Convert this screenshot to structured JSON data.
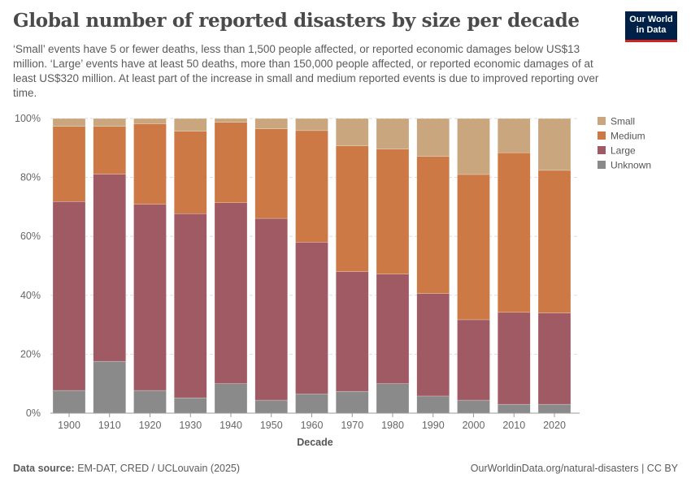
{
  "title": "Global number of reported disasters by size per decade",
  "subtitle": "‘Small’ events have 5 or fewer deaths, less than 1,500 people affected, or reported economic damages below US$13 million. ‘Large’ events have at least 50 deaths, more than 150,000 people affected, or reported economic damages of at least US$320 million. At least part of the increase in small and medium reported events is due to improved reporting over time.",
  "logo": "Our World in Data",
  "footer": {
    "source_label": "Data source:",
    "source": "EM-DAT, CRED / UCLouvain (2025)",
    "right": "OurWorldinData.org/natural-disasters | CC BY"
  },
  "chart_data": {
    "type": "bar",
    "stacked": true,
    "normalized": true,
    "xlabel": "Decade",
    "ylabel": "",
    "ylim": [
      0,
      100
    ],
    "yticks": [
      "0%",
      "20%",
      "40%",
      "60%",
      "80%",
      "100%"
    ],
    "grid": true,
    "legend_position": "right",
    "categories": [
      "1900",
      "1910",
      "1920",
      "1930",
      "1940",
      "1950",
      "1960",
      "1970",
      "1980",
      "1990",
      "2000",
      "2010",
      "2020"
    ],
    "series": [
      {
        "name": "Unknown",
        "color": "#8a8a8a",
        "values": [
          7.7,
          17.6,
          7.7,
          5.2,
          10.0,
          4.4,
          6.5,
          7.4,
          10.0,
          5.8,
          4.4,
          3.0,
          3.0
        ]
      },
      {
        "name": "Large",
        "color": "#a05a63",
        "values": [
          64.1,
          63.5,
          63.2,
          62.5,
          61.4,
          61.7,
          51.5,
          40.6,
          37.2,
          34.8,
          27.3,
          31.2,
          31.0
        ]
      },
      {
        "name": "Medium",
        "color": "#cd7945",
        "values": [
          25.5,
          16.2,
          27.3,
          28.0,
          27.3,
          30.4,
          37.9,
          42.7,
          42.4,
          46.5,
          49.3,
          54.2,
          48.4
        ]
      },
      {
        "name": "Small",
        "color": "#c9a67d",
        "values": [
          2.7,
          2.7,
          1.8,
          4.3,
          1.3,
          3.5,
          4.1,
          9.3,
          10.4,
          12.9,
          19.0,
          11.6,
          17.6
        ]
      }
    ],
    "legend_order": [
      "Small",
      "Medium",
      "Large",
      "Unknown"
    ]
  }
}
